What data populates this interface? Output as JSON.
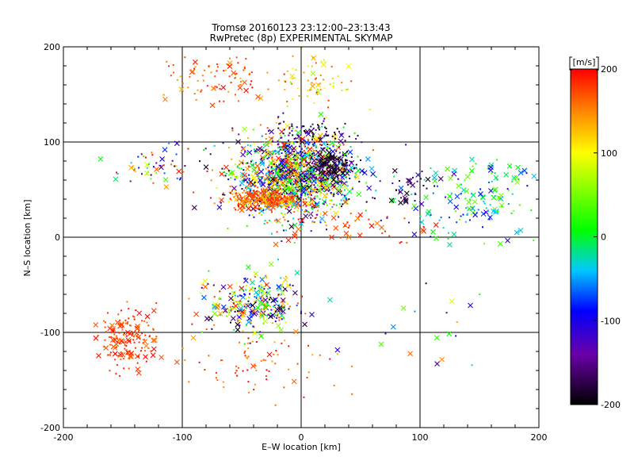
{
  "chart_data": {
    "type": "scatter",
    "title": "Tromsø 20160123 23:12:00–23:13:43",
    "subtitle": "RwPretec (8p) EXPERIMENTAL SKYMAP",
    "xlabel": "E–W location [km]",
    "ylabel": "N–S location [km]",
    "xlim": [
      -200,
      200
    ],
    "ylim": [
      -200,
      200
    ],
    "xticks": [
      -200,
      -100,
      0,
      100,
      200
    ],
    "yticks": [
      -200,
      -100,
      0,
      100,
      200
    ],
    "grid": true,
    "colorbar": {
      "label": "[m/s]",
      "range": [
        -200,
        200
      ],
      "ticks": [
        200,
        100,
        0,
        -100,
        -200
      ],
      "colors": [
        "#000000",
        "#6a00a8",
        "#0000ff",
        "#00c8ff",
        "#00ff00",
        "#ffff00",
        "#ff8000",
        "#ff0000"
      ]
    },
    "markers": {
      "cross": "large echo",
      "dot": "small echo"
    },
    "clusters": [
      {
        "x": -5,
        "y": 65,
        "sx": 25,
        "sy": 22,
        "n": 1400,
        "vmin": -200,
        "vmax": 200,
        "cross": 0.25
      },
      {
        "x": 25,
        "y": 75,
        "sx": 10,
        "sy": 8,
        "n": 160,
        "vmin": -200,
        "vmax": -150,
        "cross": 0.3
      },
      {
        "x": 15,
        "y": 110,
        "sx": 15,
        "sy": 6,
        "n": 60,
        "vmin": -200,
        "vmax": -120,
        "cross": 0.1
      },
      {
        "x": -30,
        "y": 40,
        "sx": 15,
        "sy": 5,
        "n": 260,
        "vmin": 120,
        "vmax": 200,
        "cross": 0.25
      },
      {
        "x": -70,
        "y": 165,
        "sx": 25,
        "sy": 15,
        "n": 90,
        "vmin": 130,
        "vmax": 200,
        "cross": 0.2
      },
      {
        "x": 10,
        "y": 160,
        "sx": 15,
        "sy": 15,
        "n": 70,
        "vmin": 60,
        "vmax": 200,
        "cross": 0.1
      },
      {
        "x": -120,
        "y": 75,
        "sx": 20,
        "sy": 10,
        "n": 60,
        "vmin": -200,
        "vmax": 200,
        "cross": 0.2
      },
      {
        "x": -40,
        "y": -70,
        "sx": 18,
        "sy": 15,
        "n": 300,
        "vmin": -200,
        "vmax": 200,
        "cross": 0.3
      },
      {
        "x": -145,
        "y": -105,
        "sx": 12,
        "sy": 15,
        "n": 160,
        "vmin": 150,
        "vmax": 200,
        "cross": 0.3
      },
      {
        "x": -40,
        "y": -130,
        "sx": 35,
        "sy": 20,
        "n": 80,
        "vmin": 130,
        "vmax": 200,
        "cross": 0.1
      },
      {
        "x": 140,
        "y": 40,
        "sx": 35,
        "sy": 20,
        "n": 170,
        "vmin": -120,
        "vmax": 60,
        "cross": 0.45
      },
      {
        "x": 90,
        "y": 55,
        "sx": 15,
        "sy": 10,
        "n": 30,
        "vmin": -200,
        "vmax": -150,
        "cross": 0.5
      },
      {
        "x": 50,
        "y": 10,
        "sx": 30,
        "sy": 10,
        "n": 40,
        "vmin": 150,
        "vmax": 200,
        "cross": 0.3
      },
      {
        "x": 100,
        "y": -100,
        "sx": 40,
        "sy": 40,
        "n": 20,
        "vmin": -200,
        "vmax": 200,
        "cross": 0.4
      }
    ]
  }
}
